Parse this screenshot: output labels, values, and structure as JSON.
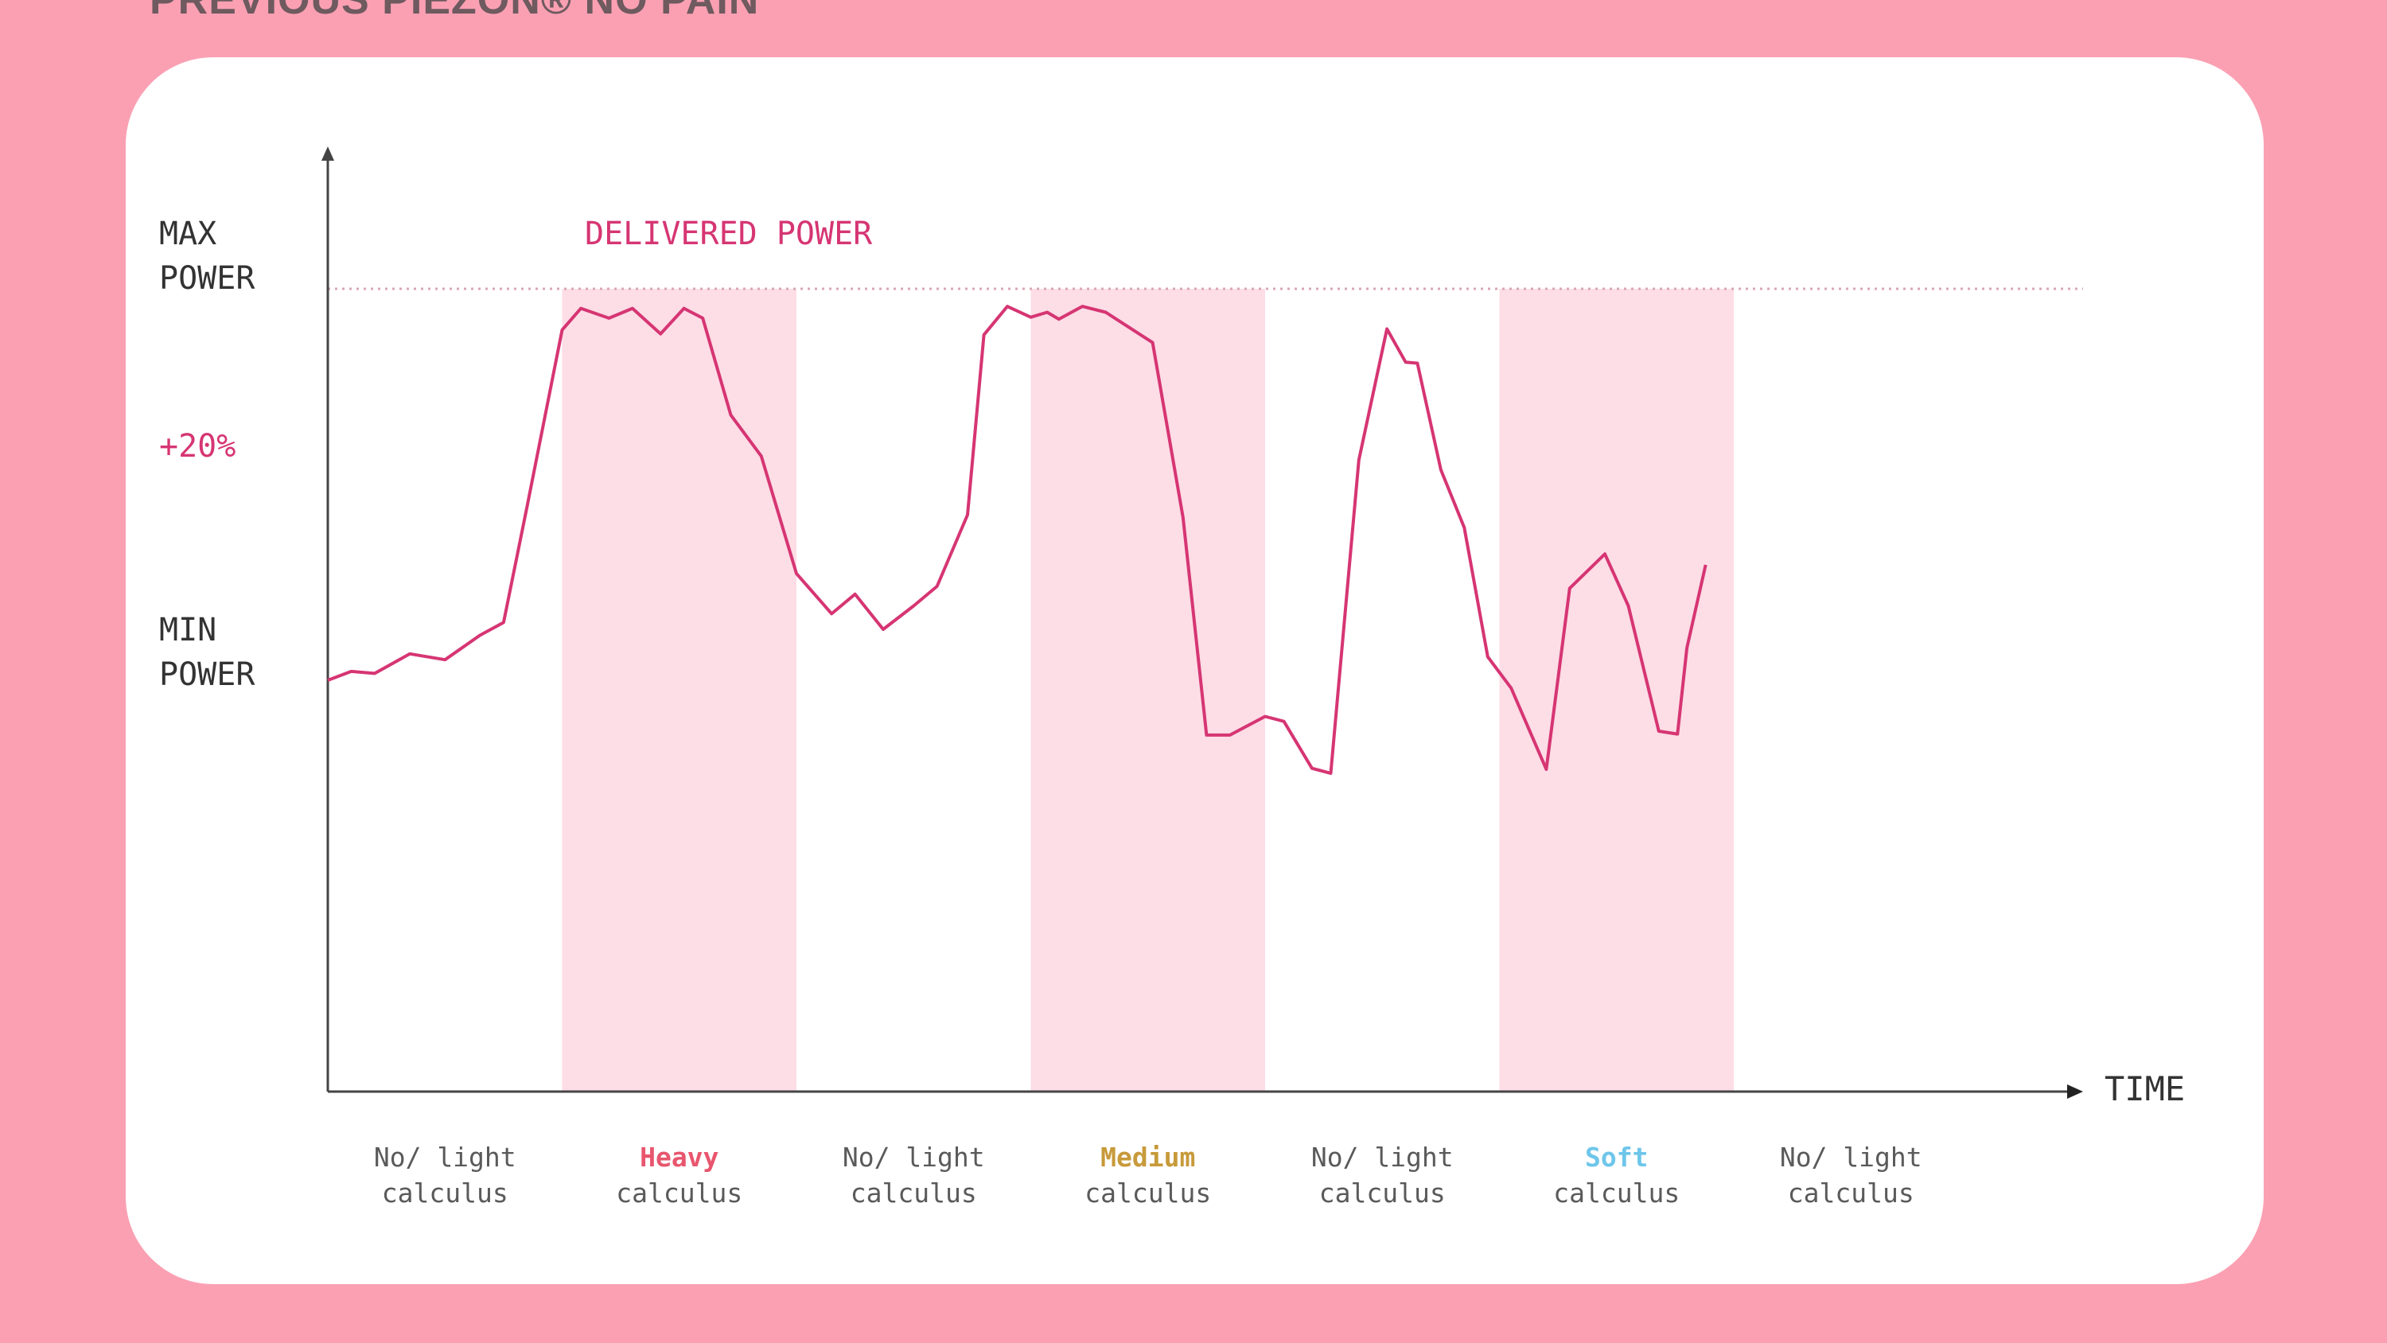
{
  "header": {
    "title": "PREVIOUS PIEZON® NO PAIN"
  },
  "chart_data": {
    "type": "line",
    "series": [
      {
        "name": "DELIVERED POWER",
        "color": "#d63573",
        "points": [
          [
            0,
            3.0
          ],
          [
            0.1,
            3.09
          ],
          [
            0.2,
            3.07
          ],
          [
            0.35,
            3.27
          ],
          [
            0.5,
            3.21
          ],
          [
            0.65,
            3.46
          ],
          [
            0.75,
            3.59
          ],
          [
            0.85,
            4.77
          ],
          [
            1.0,
            6.58
          ],
          [
            1.08,
            6.8
          ],
          [
            1.2,
            6.7
          ],
          [
            1.3,
            6.8
          ],
          [
            1.42,
            6.54
          ],
          [
            1.52,
            6.8
          ],
          [
            1.6,
            6.7
          ],
          [
            1.72,
            5.71
          ],
          [
            1.85,
            5.29
          ],
          [
            2.0,
            4.09
          ],
          [
            2.15,
            3.68
          ],
          [
            2.25,
            3.88
          ],
          [
            2.37,
            3.52
          ],
          [
            2.5,
            3.76
          ],
          [
            2.6,
            3.96
          ],
          [
            2.73,
            4.69
          ],
          [
            2.8,
            6.53
          ],
          [
            2.9,
            6.82
          ],
          [
            3.0,
            6.71
          ],
          [
            3.07,
            6.76
          ],
          [
            3.12,
            6.69
          ],
          [
            3.22,
            6.82
          ],
          [
            3.32,
            6.76
          ],
          [
            3.52,
            6.45
          ],
          [
            3.65,
            4.66
          ],
          [
            3.75,
            2.44
          ],
          [
            3.85,
            2.44
          ],
          [
            4.0,
            2.63
          ],
          [
            4.08,
            2.58
          ],
          [
            4.2,
            2.1
          ],
          [
            4.28,
            2.05
          ],
          [
            4.4,
            5.25
          ],
          [
            4.52,
            6.59
          ],
          [
            4.6,
            6.25
          ],
          [
            4.65,
            6.24
          ],
          [
            4.75,
            5.15
          ],
          [
            4.85,
            4.56
          ],
          [
            4.95,
            3.24
          ],
          [
            5.05,
            2.92
          ],
          [
            5.2,
            2.09
          ],
          [
            5.3,
            3.94
          ],
          [
            5.45,
            4.29
          ],
          [
            5.55,
            3.76
          ],
          [
            5.68,
            2.48
          ],
          [
            5.76,
            2.45
          ],
          [
            5.8,
            3.33
          ],
          [
            5.88,
            4.18
          ]
        ]
      }
    ],
    "ylabels": {
      "max": "MAX POWER",
      "mid": "+20%",
      "min": "MIN POWER"
    },
    "y_levels": {
      "max": 7,
      "mid": 5.33,
      "min": 3
    },
    "ylim": [
      -1,
      10
    ],
    "xlim": [
      0,
      6
    ],
    "xlabel": "TIME",
    "categories": [
      {
        "line1": "No/ light",
        "line2": "calculus",
        "color": "#5a5a5a",
        "shaded": false
      },
      {
        "line1": "Heavy",
        "line2": "calculus",
        "color": "#e8566e",
        "shaded": true
      },
      {
        "line1": "No/ light",
        "line2": "calculus",
        "color": "#5a5a5a",
        "shaded": false
      },
      {
        "line1": "Medium",
        "line2": "calculus",
        "color": "#c79a3a",
        "shaded": true
      },
      {
        "line1": "No/ light",
        "line2": "calculus",
        "color": "#5a5a5a",
        "shaded": false
      },
      {
        "line1": "Soft",
        "line2": "calculus",
        "color": "#6ec6ea",
        "shaded": true
      },
      {
        "line1": "No/ light",
        "line2": "calculus",
        "color": "#5a5a5a",
        "shaded": false
      }
    ],
    "colors": {
      "band": "#fddde6",
      "axis": "#444444",
      "grid": "#d9a6b3",
      "accent": "#d63573",
      "label": "#333333"
    },
    "grid": false,
    "legend": "none"
  }
}
